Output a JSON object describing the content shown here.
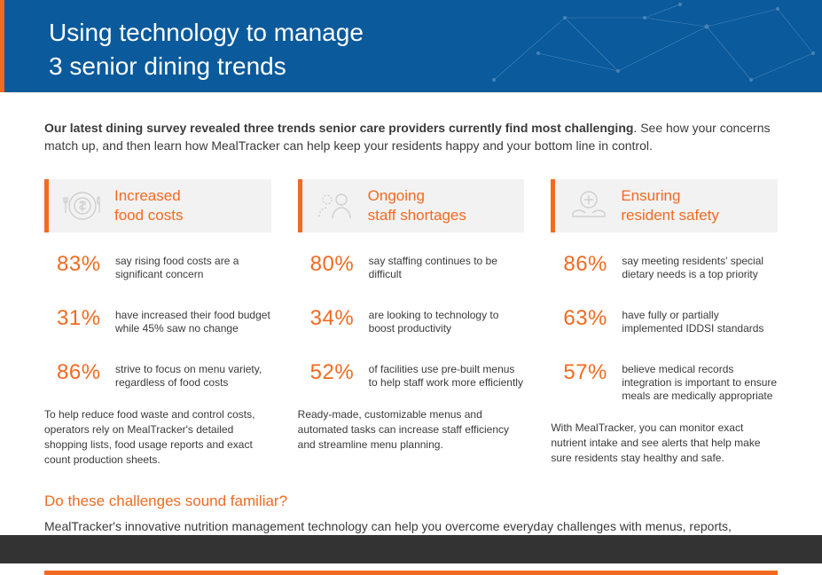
{
  "colors": {
    "heroBg": "#0a5a9c",
    "accent": "#f26a21",
    "text": "#3a3a3a",
    "cardBg": "#f2f2f2",
    "iconStroke": "#cfcfcf",
    "darkBar": "#333333",
    "white": "#ffffff"
  },
  "hero": {
    "title": "Using technology to manage\n3 senior dining trends"
  },
  "intro": {
    "bold": "Our latest dining survey revealed three trends senior care providers currently find most challenging",
    "rest": ". See how your concerns match up, and then learn how MealTracker can help keep your residents happy and your bottom line in control."
  },
  "columns": [
    {
      "icon": "plate-dollar-icon",
      "title": "Increased\nfood costs",
      "stats": [
        {
          "pct": "83%",
          "text": "say rising food costs are a significant concern"
        },
        {
          "pct": "31%",
          "text": "have increased their food budget while 45% saw no change"
        },
        {
          "pct": "86%",
          "text": "strive to focus on menu variety, regardless of food costs"
        }
      ],
      "footer": "To help reduce food waste and control costs, operators rely on MealTracker's detailed shopping lists, food usage reports and exact count production sheets."
    },
    {
      "icon": "staff-icon",
      "title": "Ongoing\nstaff shortages",
      "stats": [
        {
          "pct": "80%",
          "text": "say staffing continues to be difficult"
        },
        {
          "pct": "34%",
          "text": "are looking to technology to boost productivity"
        },
        {
          "pct": "52%",
          "text": "of facilities use pre-built menus to help staff work more efficiently"
        }
      ],
      "footer": "Ready-made, customizable menus and automated tasks can increase staff efficiency and streamline menu planning."
    },
    {
      "icon": "care-hands-icon",
      "title": "Ensuring\nresident safety",
      "stats": [
        {
          "pct": "86%",
          "text": "say meeting residents' special dietary needs is a top priority"
        },
        {
          "pct": "63%",
          "text": "have fully or partially implemented IDDSI standards"
        },
        {
          "pct": "57%",
          "text": "believe medical records integration is important to ensure meals are medically appropriate"
        }
      ],
      "footer": "With MealTracker, you can monitor exact nutrient intake and see alerts that help make sure residents stay healthy and safe."
    }
  ],
  "familiar": {
    "heading": "Do these challenges sound familiar?",
    "body": "MealTracker's innovative nutrition management technology can help you overcome everyday challenges with menus, reports, automated tasks and resident alerts that improve staff efficiency and enhance resident safety."
  }
}
